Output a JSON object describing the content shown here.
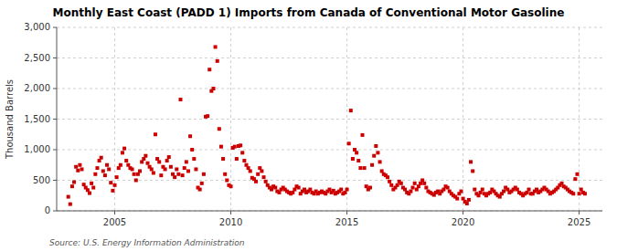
{
  "chart_data": {
    "type": "scatter",
    "title": "Monthly East Coast (PADD 1) Imports from Canada of Conventional Motor Gasoline",
    "ylabel": "Thousand Barrels",
    "source": "Source: U.S. Energy Information Administration",
    "color": "#cc0000",
    "marker": "square",
    "grid": true,
    "xlim": [
      2002.5,
      2026.0
    ],
    "xticks": [
      2005,
      2010,
      2015,
      2020,
      2025
    ],
    "ylim": [
      0,
      3000
    ],
    "yticks": [
      0,
      500,
      {
        "value": 1000,
        "label": "1,000"
      },
      {
        "value": 1500,
        "label": "1,500"
      },
      {
        "value": 2000,
        "label": "2,000"
      },
      {
        "value": 2500,
        "label": "2,500"
      },
      {
        "value": 3000,
        "label": "3,000"
      }
    ],
    "x": [
      2003.0,
      2003.083,
      2003.167,
      2003.25,
      2003.333,
      2003.417,
      2003.5,
      2003.583,
      2003.667,
      2003.75,
      2003.833,
      2003.917,
      2004.0,
      2004.083,
      2004.167,
      2004.25,
      2004.333,
      2004.417,
      2004.5,
      2004.583,
      2004.667,
      2004.75,
      2004.833,
      2004.917,
      2005.0,
      2005.083,
      2005.167,
      2005.25,
      2005.333,
      2005.417,
      2005.5,
      2005.583,
      2005.667,
      2005.75,
      2005.833,
      2005.917,
      2006.0,
      2006.083,
      2006.167,
      2006.25,
      2006.333,
      2006.417,
      2006.5,
      2006.583,
      2006.667,
      2006.75,
      2006.833,
      2006.917,
      2007.0,
      2007.083,
      2007.167,
      2007.25,
      2007.333,
      2007.417,
      2007.5,
      2007.583,
      2007.667,
      2007.75,
      2007.833,
      2007.917,
      2008.0,
      2008.083,
      2008.167,
      2008.25,
      2008.333,
      2008.417,
      2008.5,
      2008.583,
      2008.667,
      2008.75,
      2008.833,
      2008.917,
      2009.0,
      2009.083,
      2009.167,
      2009.25,
      2009.333,
      2009.417,
      2009.5,
      2009.583,
      2009.667,
      2009.75,
      2009.833,
      2009.917,
      2010.0,
      2010.083,
      2010.167,
      2010.25,
      2010.333,
      2010.417,
      2010.5,
      2010.583,
      2010.667,
      2010.75,
      2010.833,
      2010.917,
      2011.0,
      2011.083,
      2011.167,
      2011.25,
      2011.333,
      2011.417,
      2011.5,
      2011.583,
      2011.667,
      2011.75,
      2011.833,
      2011.917,
      2012.0,
      2012.083,
      2012.167,
      2012.25,
      2012.333,
      2012.417,
      2012.5,
      2012.583,
      2012.667,
      2012.75,
      2012.833,
      2012.917,
      2013.0,
      2013.083,
      2013.167,
      2013.25,
      2013.333,
      2013.417,
      2013.5,
      2013.583,
      2013.667,
      2013.75,
      2013.833,
      2013.917,
      2014.0,
      2014.083,
      2014.167,
      2014.25,
      2014.333,
      2014.417,
      2014.5,
      2014.583,
      2014.667,
      2014.75,
      2014.833,
      2014.917,
      2015.0,
      2015.083,
      2015.167,
      2015.25,
      2015.333,
      2015.417,
      2015.5,
      2015.583,
      2015.667,
      2015.75,
      2015.833,
      2015.917,
      2016.0,
      2016.083,
      2016.167,
      2016.25,
      2016.333,
      2016.417,
      2016.5,
      2016.583,
      2016.667,
      2016.75,
      2016.833,
      2016.917,
      2017.0,
      2017.083,
      2017.167,
      2017.25,
      2017.333,
      2017.417,
      2017.5,
      2017.583,
      2017.667,
      2017.75,
      2017.833,
      2017.917,
      2018.0,
      2018.083,
      2018.167,
      2018.25,
      2018.333,
      2018.417,
      2018.5,
      2018.583,
      2018.667,
      2018.75,
      2018.833,
      2018.917,
      2019.0,
      2019.083,
      2019.167,
      2019.25,
      2019.333,
      2019.417,
      2019.5,
      2019.583,
      2019.667,
      2019.75,
      2019.833,
      2019.917,
      2020.0,
      2020.083,
      2020.167,
      2020.25,
      2020.333,
      2020.417,
      2020.5,
      2020.583,
      2020.667,
      2020.75,
      2020.833,
      2020.917,
      2021.0,
      2021.083,
      2021.167,
      2021.25,
      2021.333,
      2021.417,
      2021.5,
      2021.583,
      2021.667,
      2021.75,
      2021.833,
      2021.917,
      2022.0,
      2022.083,
      2022.167,
      2022.25,
      2022.333,
      2022.417,
      2022.5,
      2022.583,
      2022.667,
      2022.75,
      2022.833,
      2022.917,
      2023.0,
      2023.083,
      2023.167,
      2023.25,
      2023.333,
      2023.417,
      2023.5,
      2023.583,
      2023.667,
      2023.75,
      2023.833,
      2023.917,
      2024.0,
      2024.083,
      2024.167,
      2024.25,
      2024.333,
      2024.417,
      2024.5,
      2024.583,
      2024.667,
      2024.75,
      2024.833,
      2024.917,
      2025.0,
      2025.083,
      2025.167,
      2025.25
    ],
    "values": [
      230,
      110,
      400,
      470,
      720,
      660,
      750,
      680,
      430,
      380,
      340,
      290,
      450,
      380,
      600,
      700,
      820,
      870,
      650,
      580,
      750,
      680,
      460,
      330,
      420,
      550,
      700,
      750,
      950,
      1020,
      820,
      750,
      700,
      680,
      600,
      500,
      600,
      650,
      800,
      850,
      900,
      780,
      720,
      680,
      620,
      1250,
      850,
      800,
      580,
      720,
      680,
      820,
      880,
      720,
      600,
      550,
      680,
      600,
      1820,
      580,
      700,
      800,
      650,
      1220,
      1000,
      850,
      680,
      380,
      350,
      450,
      600,
      1540,
      1550,
      2310,
      1960,
      2000,
      2680,
      2450,
      1340,
      1050,
      850,
      600,
      500,
      420,
      400,
      1030,
      1050,
      850,
      1060,
      1070,
      950,
      820,
      750,
      700,
      650,
      540,
      520,
      480,
      600,
      700,
      650,
      550,
      480,
      420,
      380,
      350,
      400,
      380,
      320,
      300,
      350,
      380,
      350,
      320,
      300,
      280,
      300,
      350,
      400,
      380,
      280,
      320,
      350,
      300,
      320,
      350,
      300,
      280,
      320,
      280,
      300,
      320,
      300,
      280,
      320,
      350,
      300,
      330,
      280,
      300,
      320,
      350,
      280,
      300,
      350,
      1100,
      1640,
      850,
      1000,
      950,
      820,
      700,
      1240,
      700,
      400,
      350,
      380,
      750,
      900,
      1060,
      950,
      800,
      650,
      600,
      580,
      550,
      480,
      420,
      350,
      380,
      420,
      480,
      450,
      380,
      350,
      300,
      280,
      320,
      380,
      450,
      350,
      400,
      450,
      500,
      450,
      380,
      320,
      300,
      280,
      260,
      300,
      320,
      280,
      320,
      350,
      400,
      380,
      320,
      280,
      250,
      230,
      200,
      280,
      320,
      200,
      150,
      120,
      180,
      800,
      650,
      350,
      280,
      250,
      300,
      350,
      280,
      250,
      280,
      300,
      350,
      320,
      280,
      250,
      230,
      280,
      320,
      380,
      350,
      300,
      320,
      350,
      380,
      350,
      300,
      280,
      250,
      280,
      300,
      350,
      280,
      280,
      320,
      350,
      300,
      320,
      350,
      380,
      350,
      320,
      280,
      300,
      320,
      350,
      380,
      420,
      450,
      400,
      380,
      350,
      320,
      300,
      280,
      520,
      600,
      280,
      350,
      300,
      280
    ]
  }
}
